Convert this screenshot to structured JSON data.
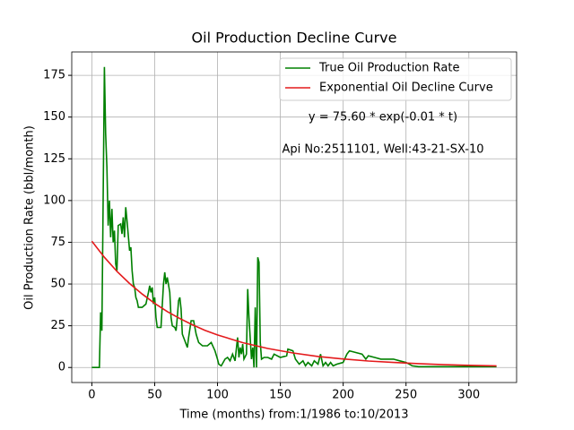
{
  "chart_data": {
    "type": "line",
    "title": "Oil Production Decline Curve",
    "xlabel": "Time (months) from:1/1986 to:10/2013",
    "ylabel": "Oil Production Rate (bbl/month)",
    "annotations": [
      "y = 75.60 * exp(-0.01 * t)",
      "Api No:2511101, Well:43-21-SX-10"
    ],
    "xlim": [
      -16,
      338
    ],
    "ylim": [
      -9,
      189
    ],
    "xticks": [
      0,
      50,
      100,
      150,
      200,
      250,
      300
    ],
    "yticks": [
      0,
      25,
      50,
      75,
      100,
      125,
      150,
      175
    ],
    "grid": true,
    "legend": "upper right",
    "series": [
      {
        "name": "True Oil Production Rate",
        "color": "#008000",
        "x": [
          0,
          6,
          7,
          8,
          9,
          10,
          11,
          12,
          13,
          14,
          15,
          16,
          17,
          18,
          19,
          20,
          21,
          23,
          24,
          25,
          26,
          27,
          28,
          30,
          31,
          32,
          33,
          34,
          35,
          36,
          37,
          40,
          43,
          45,
          46,
          47,
          48,
          49,
          50,
          51,
          52,
          55,
          57,
          58,
          59,
          60,
          62,
          63,
          64,
          66,
          67,
          68,
          69,
          70,
          71,
          72,
          74,
          76,
          77,
          79,
          81,
          83,
          85,
          88,
          92,
          95,
          98,
          100,
          101,
          103,
          106,
          108,
          110,
          112,
          114,
          116,
          117,
          118,
          119,
          120,
          121,
          123,
          124,
          125,
          127,
          128,
          129,
          130,
          131,
          132,
          133,
          134,
          135,
          137,
          140,
          143,
          145,
          150,
          155,
          156,
          160,
          162,
          165,
          168,
          170,
          172,
          175,
          177,
          180,
          182,
          184,
          186,
          188,
          190,
          192,
          195,
          200,
          203,
          205,
          210,
          215,
          218,
          220,
          225,
          230,
          240,
          245,
          250,
          255,
          260,
          280,
          300,
          322
        ],
        "values": [
          0,
          0,
          33,
          22,
          100,
          180,
          140,
          120,
          85,
          100,
          78,
          95,
          75,
          82,
          62,
          58,
          85,
          86,
          80,
          90,
          78,
          96,
          88,
          70,
          72,
          58,
          50,
          48,
          42,
          40,
          36,
          36,
          38,
          45,
          49,
          45,
          48,
          38,
          42,
          30,
          24,
          24,
          50,
          57,
          50,
          54,
          45,
          30,
          25,
          24,
          22,
          30,
          40,
          42,
          35,
          20,
          16,
          12,
          18,
          28,
          28,
          20,
          15,
          13,
          13,
          15,
          10,
          5,
          2,
          1,
          5,
          6,
          4,
          8,
          4,
          18,
          6,
          12,
          8,
          14,
          5,
          8,
          47,
          30,
          5,
          12,
          0,
          36,
          0,
          66,
          63,
          15,
          5,
          6,
          6,
          5,
          8,
          6,
          7,
          11,
          10,
          5,
          2,
          4,
          1,
          3,
          1,
          4,
          2,
          8,
          1,
          3,
          1,
          3,
          1,
          2,
          3,
          8,
          10,
          9,
          8,
          5,
          7,
          6,
          5,
          5,
          4,
          3,
          1,
          0.5,
          0.5,
          0.5,
          0.5
        ]
      },
      {
        "name": "Exponential Oil Decline Curve",
        "color": "#e41a1c",
        "x": [
          0,
          10,
          20,
          30,
          40,
          50,
          60,
          70,
          80,
          90,
          100,
          120,
          140,
          160,
          180,
          200,
          220,
          240,
          260,
          280,
          300,
          322
        ],
        "values": [
          75.6,
          66.0,
          57.6,
          50.3,
          44.0,
          38.4,
          33.5,
          29.3,
          25.6,
          22.3,
          19.5,
          14.9,
          11.4,
          8.7,
          6.6,
          5.1,
          3.9,
          3.0,
          2.3,
          1.7,
          1.3,
          1.0
        ]
      }
    ]
  }
}
